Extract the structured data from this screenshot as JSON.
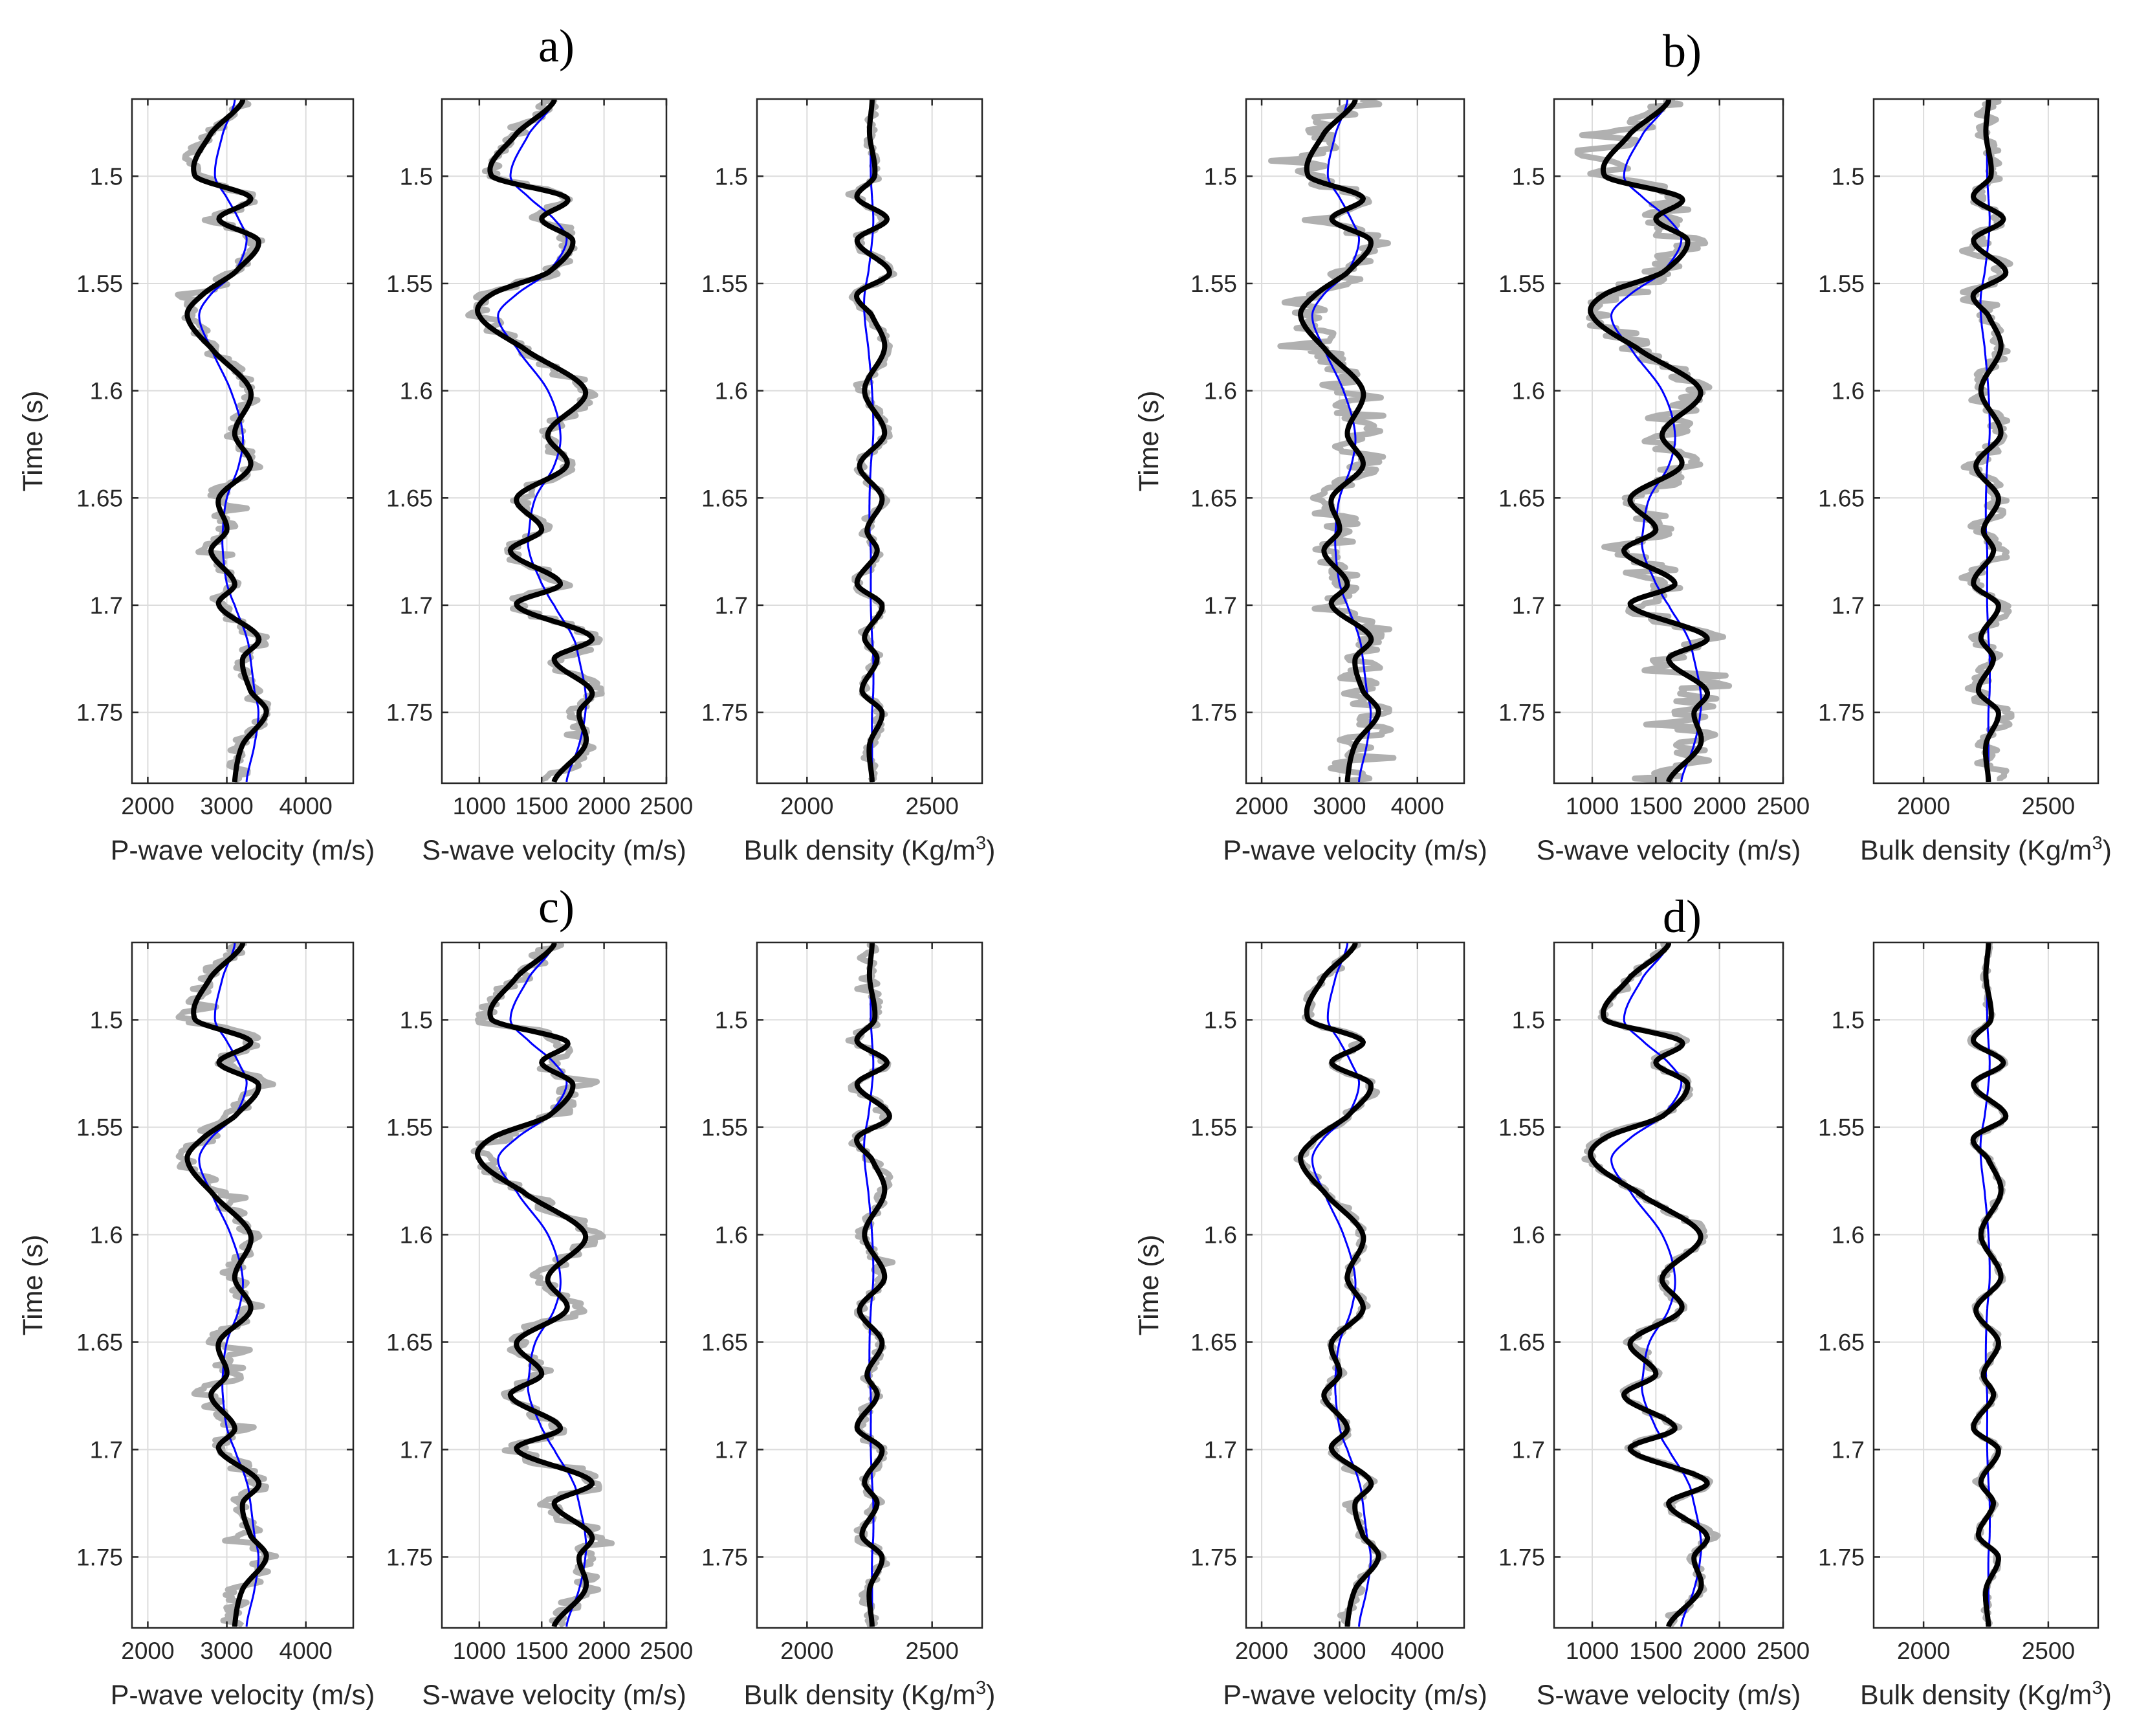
{
  "colors": {
    "background": "#ffffff",
    "noisy": "#b0b0b0",
    "true_log": "#0000ff",
    "smoothed": "#000000",
    "grid": "#dcdcdc",
    "axes": "#262626"
  },
  "chart_data": {
    "type": "line",
    "layout": "2x2 groups of 3 well-log tracks sharing a vertical time axis",
    "ylabel": "Time (s)",
    "yticks": [
      1.5,
      1.55,
      1.6,
      1.65,
      1.7,
      1.75
    ],
    "ylim": [
      1.464,
      1.783
    ],
    "y_reversed": true,
    "grid": true,
    "tracks": [
      {
        "key": "vp",
        "xlabel": "P-wave velocity (m/s)",
        "xticks": [
          2000,
          3000,
          4000
        ],
        "xlim": [
          1800,
          4600
        ]
      },
      {
        "key": "vs",
        "xlabel": "S-wave velocity (m/s)",
        "xticks": [
          1000,
          1500,
          2000,
          2500
        ],
        "xlim": [
          700,
          2500
        ]
      },
      {
        "key": "rho",
        "xlabel_main": "Bulk density (Kg/m",
        "xlabel_sup": "3",
        "xlabel_end": ")",
        "xticks": [
          2000,
          2500
        ],
        "xlim": [
          1800,
          2700
        ]
      }
    ],
    "panels": [
      {
        "label": "a)",
        "noise_level": "medium"
      },
      {
        "label": "b)",
        "noise_level": "high"
      },
      {
        "label": "c)",
        "noise_level": "medium-high"
      },
      {
        "label": "d)",
        "noise_level": "low"
      }
    ],
    "series": [
      {
        "name": "noisy",
        "style": "thick grey"
      },
      {
        "name": "smooth",
        "style": "thick black"
      },
      {
        "name": "trend",
        "style": "thin blue"
      }
    ],
    "profiles": {
      "time": [
        1.465,
        1.48,
        1.5,
        1.51,
        1.52,
        1.53,
        1.545,
        1.555,
        1.565,
        1.58,
        1.6,
        1.62,
        1.635,
        1.65,
        1.665,
        1.675,
        1.69,
        1.7,
        1.715,
        1.725,
        1.74,
        1.75,
        1.765,
        1.782
      ],
      "vp_smooth": [
        3200,
        2800,
        2600,
        3300,
        2900,
        3400,
        3100,
        2700,
        2500,
        2800,
        3300,
        3100,
        3300,
        2900,
        3000,
        2800,
        3100,
        2900,
        3400,
        3200,
        3300,
        3500,
        3200,
        3100
      ],
      "vp_trend": [
        3100,
        2950,
        2850,
        3000,
        3150,
        3250,
        3100,
        2800,
        2650,
        2800,
        3050,
        3200,
        3150,
        3000,
        2950,
        2950,
        3000,
        3100,
        3250,
        3300,
        3350,
        3400,
        3350,
        3250
      ],
      "vs_smooth": [
        1600,
        1300,
        1100,
        1700,
        1500,
        1750,
        1550,
        1100,
        1000,
        1350,
        1850,
        1550,
        1700,
        1300,
        1500,
        1250,
        1650,
        1300,
        1900,
        1600,
        1900,
        1800,
        1850,
        1600
      ],
      "vs_trend": [
        1600,
        1400,
        1250,
        1400,
        1600,
        1700,
        1550,
        1300,
        1150,
        1300,
        1550,
        1650,
        1600,
        1450,
        1400,
        1400,
        1500,
        1600,
        1750,
        1800,
        1850,
        1850,
        1800,
        1700
      ],
      "rho_smooth": [
        2260,
        2250,
        2270,
        2200,
        2320,
        2200,
        2330,
        2200,
        2260,
        2310,
        2230,
        2310,
        2210,
        2300,
        2240,
        2280,
        2200,
        2300,
        2230,
        2280,
        2220,
        2300,
        2250,
        2260
      ],
      "rho_trend": [
        2260,
        2255,
        2255,
        2260,
        2265,
        2260,
        2245,
        2230,
        2230,
        2245,
        2260,
        2265,
        2255,
        2250,
        2250,
        2255,
        2255,
        2255,
        2260,
        2265,
        2265,
        2260,
        2260,
        2260
      ]
    }
  }
}
